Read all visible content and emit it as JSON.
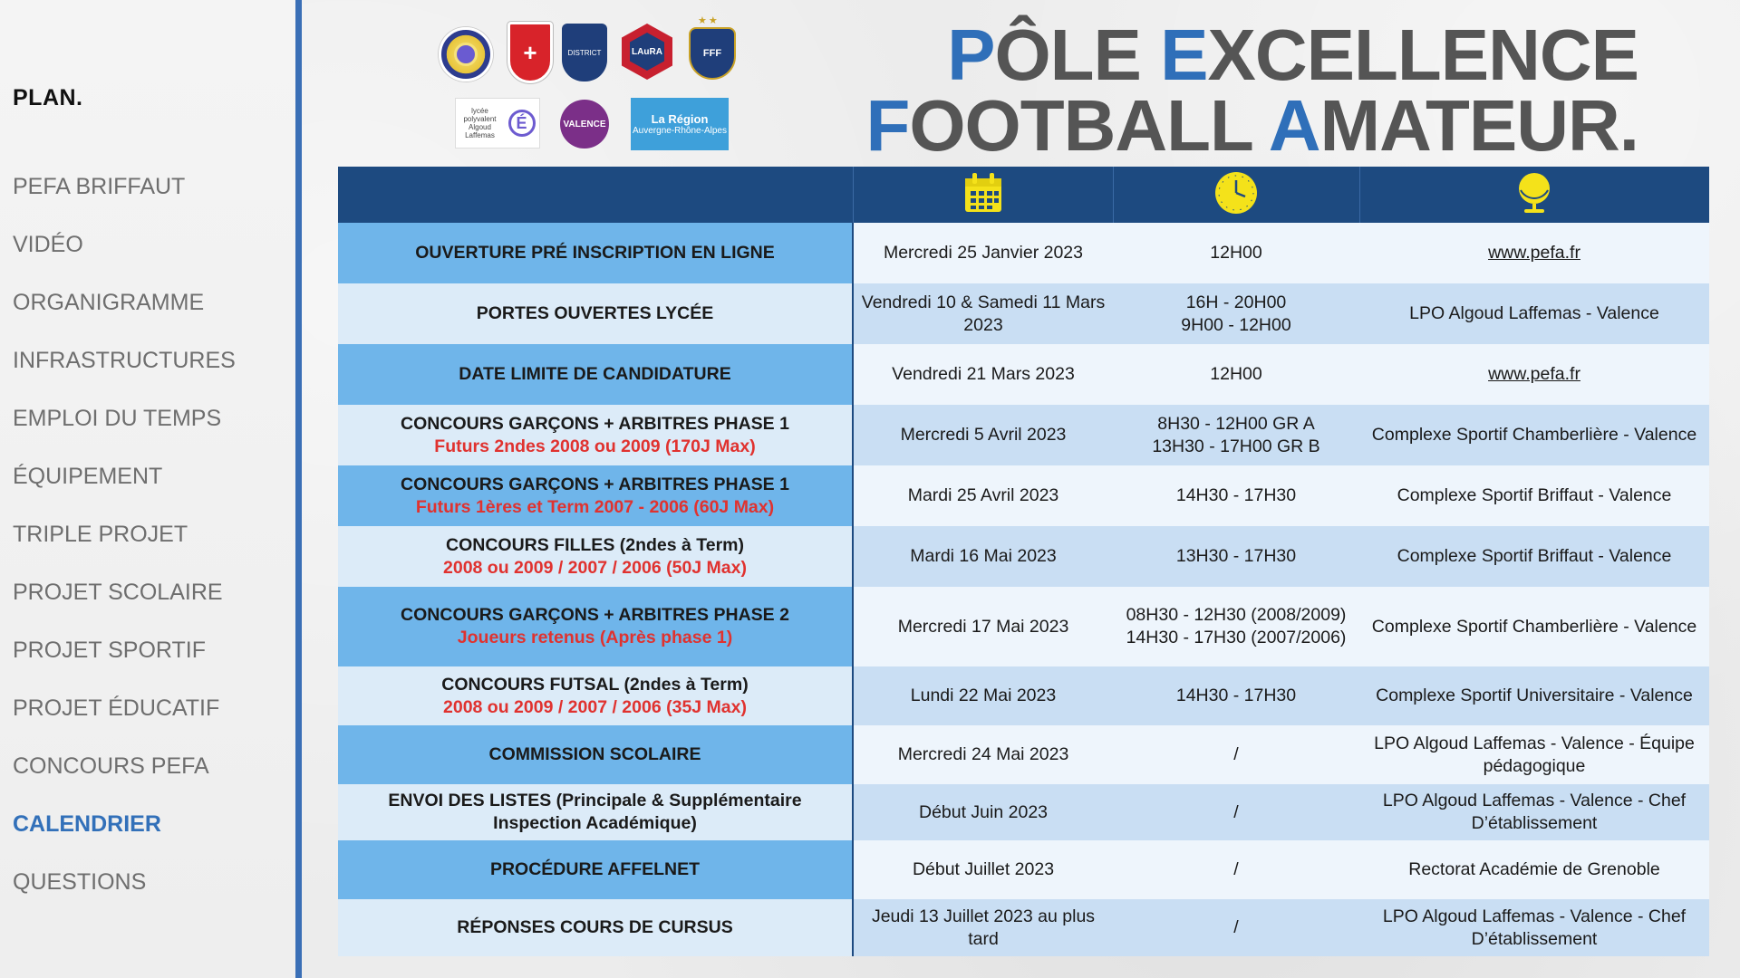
{
  "sidebar": {
    "title": "PLAN.",
    "items": [
      {
        "label": "PEFA BRIFFAUT",
        "active": false
      },
      {
        "label": "VIDÉO",
        "active": false
      },
      {
        "label": "ORGANIGRAMME",
        "active": false
      },
      {
        "label": "INFRASTRUCTURES",
        "active": false
      },
      {
        "label": "EMPLOI DU TEMPS",
        "active": false
      },
      {
        "label": "ÉQUIPEMENT",
        "active": false
      },
      {
        "label": "TRIPLE PROJET",
        "active": false
      },
      {
        "label": "PROJET SCOLAIRE",
        "active": false
      },
      {
        "label": "PROJET SPORTIF",
        "active": false
      },
      {
        "label": "PROJET ÉDUCATIF",
        "active": false
      },
      {
        "label": "CONCOURS PEFA",
        "active": false
      },
      {
        "label": "CALENDRIER",
        "active": true
      },
      {
        "label": "QUESTIONS",
        "active": false
      }
    ]
  },
  "logos": {
    "olympique": "+",
    "district": "DISTRICT",
    "laura": "LAuRA",
    "fff": "FFF",
    "stars": "★★",
    "lycee_text": "lycée polyvalent Algoud Laffemas",
    "lycee_letter": "É",
    "valence": "VALENCE",
    "region_big": "La Région",
    "region_small": "Auvergne-Rhône-Alpes"
  },
  "title": {
    "line1": [
      {
        "t": "P",
        "accent": true
      },
      {
        "t": "ÔLE ",
        "accent": false
      },
      {
        "t": "E",
        "accent": true
      },
      {
        "t": "XCELLENCE",
        "accent": false
      }
    ],
    "line2": [
      {
        "t": "F",
        "accent": true
      },
      {
        "t": "OOTBALL ",
        "accent": false
      },
      {
        "t": "A",
        "accent": true
      },
      {
        "t": "MATEUR.",
        "accent": false
      }
    ]
  },
  "table": {
    "header_icons": [
      "calendar-icon",
      "clock-icon",
      "globe-icon"
    ],
    "colors": {
      "header": "#1d4a80",
      "dark": "#6fb5ea",
      "light": "#dcebf8",
      "sub": "#e0322f",
      "icon": "#f4e21a"
    },
    "rows": [
      {
        "event": "OUVERTURE PRÉ INSCRIPTION EN LIGNE",
        "sub": "",
        "date": "Mercredi 25 Janvier 2023",
        "time": "12H00",
        "place": "www.pefa.fr",
        "link": true
      },
      {
        "event": "PORTES OUVERTES LYCÉE",
        "sub": "",
        "date": "Vendredi 10 & Samedi 11 Mars 2023",
        "time": "16H - 20H00\n9H00 - 12H00",
        "place": "LPO Algoud Laffemas - Valence",
        "link": false
      },
      {
        "event": "DATE LIMITE DE CANDIDATURE",
        "sub": "",
        "date": "Vendredi 21 Mars 2023",
        "time": "12H00",
        "place": "www.pefa.fr",
        "link": true
      },
      {
        "event": "CONCOURS GARÇONS + ARBITRES PHASE 1",
        "sub": "Futurs 2ndes 2008 ou 2009 (170J Max)",
        "date": "Mercredi 5 Avril 2023",
        "time": "8H30 - 12H00 GR A\n13H30 - 17H00 GR B",
        "place": "Complexe Sportif Chamberlière - Valence",
        "link": false
      },
      {
        "event": "CONCOURS GARÇONS + ARBITRES PHASE 1",
        "sub": "Futurs 1ères et Term 2007 - 2006 (60J Max)",
        "date": "Mardi 25 Avril 2023",
        "time": "14H30 - 17H30",
        "place": "Complexe Sportif Briffaut - Valence",
        "link": false
      },
      {
        "event": "CONCOURS FILLES (2ndes à Term)",
        "sub": "2008 ou 2009 / 2007 / 2006 (50J Max)",
        "date": "Mardi 16 Mai 2023",
        "time": "13H30 - 17H30",
        "place": "Complexe Sportif Briffaut - Valence",
        "link": false
      },
      {
        "event": "CONCOURS GARÇONS + ARBITRES PHASE 2",
        "sub": "Joueurs retenus (Après phase 1)",
        "date": "Mercredi 17 Mai 2023",
        "time": "08H30 - 12H30 (2008/2009)\n14H30 - 17H30 (2007/2006)",
        "place": "Complexe Sportif Chamberlière - Valence",
        "link": false
      },
      {
        "event": "CONCOURS FUTSAL (2ndes à Term)",
        "sub": "2008 ou 2009 / 2007 / 2006 (35J Max)",
        "date": "Lundi 22 Mai 2023",
        "time": "14H30 - 17H30",
        "place": "Complexe Sportif Universitaire - Valence",
        "link": false
      },
      {
        "event": "COMMISSION SCOLAIRE",
        "sub": "",
        "date": "Mercredi 24 Mai 2023",
        "time": "/",
        "place": "LPO Algoud Laffemas - Valence - Équipe pédagogique",
        "link": false
      },
      {
        "event": "ENVOI DES LISTES (Principale & Supplémentaire Inspection Académique)",
        "sub": "",
        "date": "Début Juin 2023",
        "time": "/",
        "place": "LPO Algoud Laffemas - Valence - Chef D’établissement",
        "link": false
      },
      {
        "event": "PROCÉDURE AFFELNET",
        "sub": "",
        "date": "Début Juillet 2023",
        "time": "/",
        "place": "Rectorat Académie de Grenoble",
        "link": false
      },
      {
        "event": "RÉPONSES COURS DE CURSUS",
        "sub": "",
        "date": "Jeudi 13 Juillet 2023 au plus tard",
        "time": "/",
        "place": "LPO Algoud Laffemas - Valence - Chef D’établissement",
        "link": false
      }
    ]
  }
}
